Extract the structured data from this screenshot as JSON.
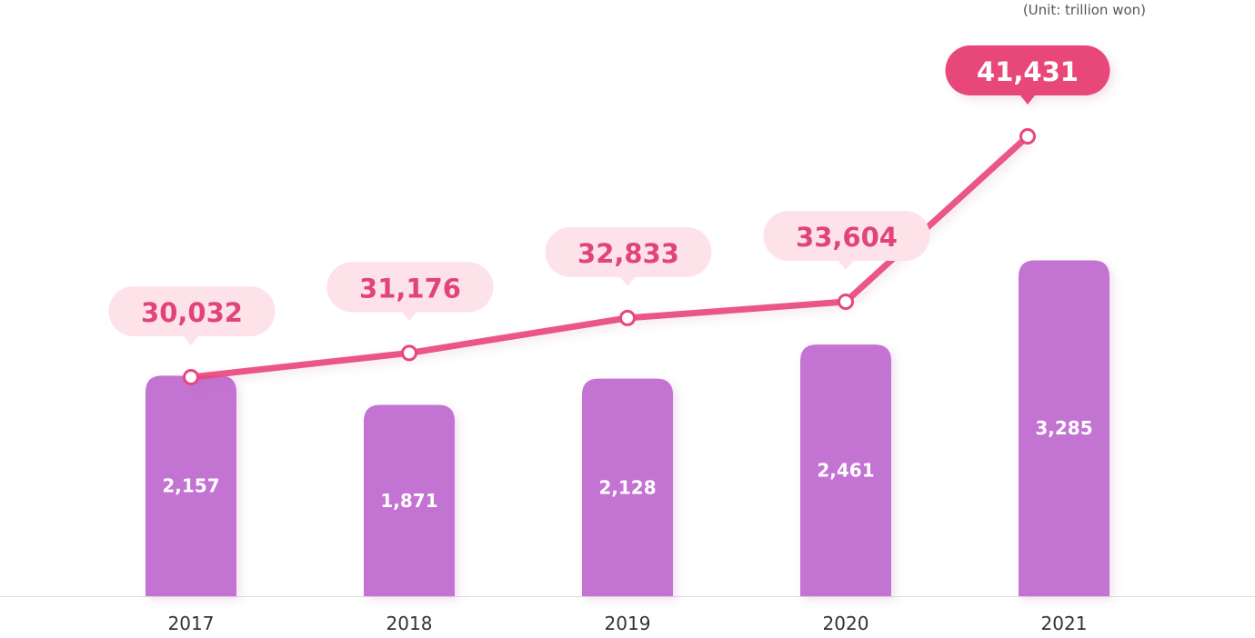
{
  "unit_note": "(Unit: trillion won)",
  "colors": {
    "bar": "#c373d2",
    "line": "#e8467a",
    "bubble": "#fde2ea",
    "bubble_text": "#e0447a",
    "highlight_bubble": "#e8467a",
    "highlight_text": "#ffffff",
    "axis": "#dddddd"
  },
  "chart_data": {
    "type": "bar",
    "categories": [
      "2017",
      "2018",
      "2019",
      "2020",
      "2021"
    ],
    "series": [
      {
        "type": "bar",
        "values": [
          2157,
          1871,
          2128,
          2461,
          3285
        ],
        "labels": [
          "2,157",
          "1,871",
          "2,128",
          "2,461",
          "3,285"
        ]
      },
      {
        "type": "line",
        "values": [
          30032,
          31176,
          32833,
          33604,
          41431
        ],
        "labels": [
          "30,032",
          "31,176",
          "32,833",
          "33,604",
          "41,431"
        ],
        "highlight_index": 4
      }
    ]
  }
}
